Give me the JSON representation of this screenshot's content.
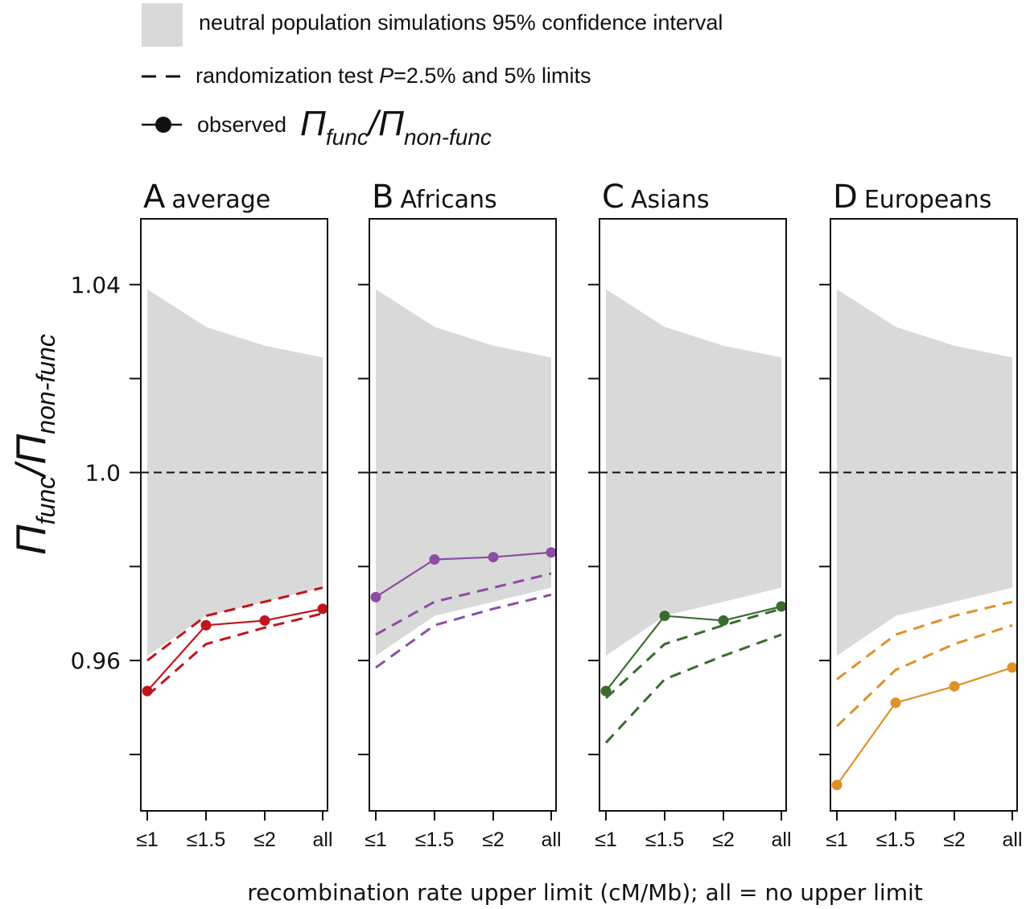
{
  "legend": {
    "ci_label": "neutral population simulations 95% confidence interval",
    "rand_prefix": "randomization test ",
    "rand_p": "P",
    "rand_suffix": "=2.5% and 5% limits",
    "obs_label": "observed",
    "obs_pi": "Π",
    "obs_func": "func",
    "obs_slash": "/",
    "obs_nonfunc": "non-func",
    "ci_color": "#d9d9d9"
  },
  "axes": {
    "ylabel_pi": "Π",
    "ylabel_func": "func",
    "ylabel_slash": "/",
    "ylabel_nonfunc": "non-func",
    "xlabel": "recombination rate upper limit (cM/Mb); all = no upper limit",
    "yticks": [
      "1.04",
      "1.0",
      "0.96"
    ],
    "ytick_values": [
      1.04,
      1.0,
      0.96
    ],
    "yminor_values": [
      1.02,
      0.98,
      0.94
    ],
    "ylim": [
      0.928,
      1.054
    ],
    "reference_line": 1.0
  },
  "chart_data": {
    "type": "line",
    "title": "",
    "xlabel": "recombination rate upper limit (cM/Mb); all = no upper limit",
    "ylabel": "Πfunc/Πnon-func",
    "categories": [
      "≤1",
      "≤1.5",
      "≤2",
      "all"
    ],
    "ylim": [
      0.928,
      1.054
    ],
    "ci_band": {
      "upper": [
        1.039,
        1.031,
        1.027,
        1.0245
      ],
      "lower": [
        0.961,
        0.9695,
        0.9725,
        0.9755
      ]
    },
    "panels": [
      {
        "letter": "A",
        "name": "average",
        "color": "#c0151b",
        "observed": [
          0.9535,
          0.9675,
          0.9685,
          0.971
        ],
        "limit_5pct": [
          0.96,
          0.9695,
          0.9725,
          0.9755
        ],
        "limit_2_5pct": [
          0.9525,
          0.9635,
          0.967,
          0.97
        ]
      },
      {
        "letter": "B",
        "name": "Africans",
        "color": "#8b4ea3",
        "observed": [
          0.9735,
          0.9815,
          0.982,
          0.983
        ],
        "limit_5pct": [
          0.9655,
          0.9725,
          0.9755,
          0.9785
        ],
        "limit_2_5pct": [
          0.9585,
          0.9675,
          0.971,
          0.974
        ]
      },
      {
        "letter": "C",
        "name": "Asians",
        "color": "#3b6a2e",
        "observed": [
          0.9535,
          0.9695,
          0.9685,
          0.9715
        ],
        "limit_5pct": [
          0.952,
          0.9635,
          0.9675,
          0.971
        ],
        "limit_2_5pct": [
          0.9425,
          0.956,
          0.961,
          0.9655
        ]
      },
      {
        "letter": "D",
        "name": "Europeans",
        "color": "#e0902a",
        "observed": [
          0.9335,
          0.951,
          0.9545,
          0.9585
        ],
        "limit_5pct": [
          0.956,
          0.9655,
          0.9695,
          0.9725
        ],
        "limit_2_5pct": [
          0.946,
          0.958,
          0.9635,
          0.9675
        ]
      }
    ]
  }
}
